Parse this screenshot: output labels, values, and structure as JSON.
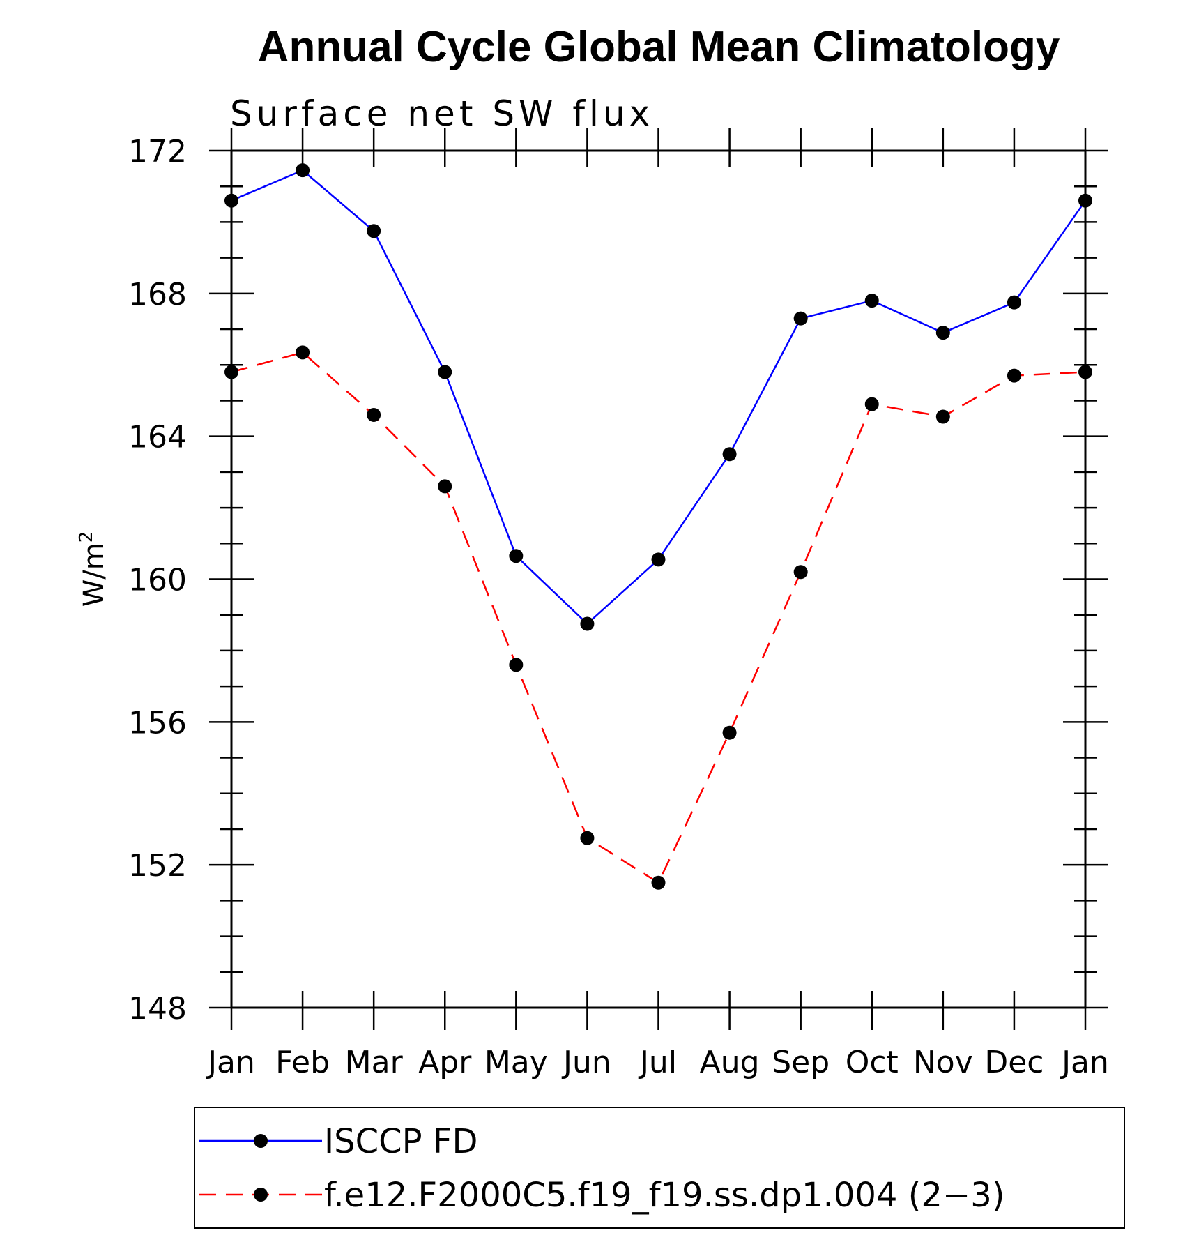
{
  "chart_data": {
    "type": "line",
    "title": "Annual Cycle Global Mean Climatology",
    "subtitle": "Surface net SW flux",
    "ylabel": "W/m",
    "ylabel_sup": "2",
    "xlabel": "",
    "categories": [
      "Jan",
      "Feb",
      "Mar",
      "Apr",
      "May",
      "Jun",
      "Jul",
      "Aug",
      "Sep",
      "Oct",
      "Nov",
      "Dec",
      "Jan"
    ],
    "ylim": [
      148,
      172
    ],
    "yticks": [
      148,
      152,
      156,
      160,
      164,
      168,
      172
    ],
    "y_minor_step": 1,
    "grid": false,
    "legend_position": "bottom",
    "series": [
      {
        "name": "ISCCP FD",
        "color": "#0000ff",
        "dash": "solid",
        "marker": "filled-circle",
        "values": [
          170.6,
          171.45,
          169.75,
          165.8,
          160.65,
          158.75,
          160.55,
          163.5,
          167.3,
          167.8,
          166.9,
          167.75,
          170.6
        ]
      },
      {
        "name": "f.e12.F2000C5.f19_f19.ss.dp1.004 (2−3)",
        "color": "#ff0000",
        "dash": "dashed",
        "marker": "filled-circle",
        "values": [
          165.8,
          166.35,
          164.6,
          162.6,
          157.6,
          152.75,
          151.5,
          155.7,
          160.2,
          164.9,
          164.55,
          165.7,
          165.8
        ]
      }
    ]
  }
}
